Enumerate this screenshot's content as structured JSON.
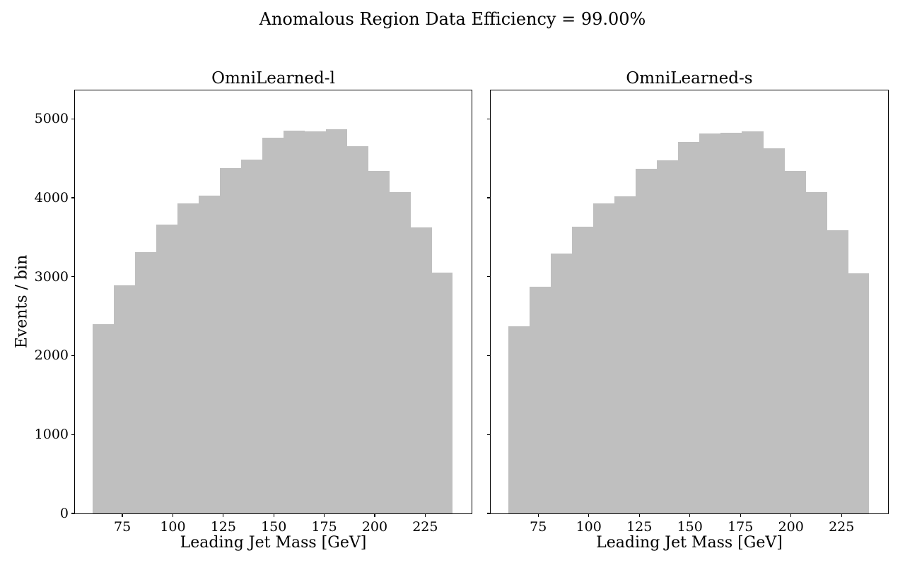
{
  "figure": {
    "suptitle": "Anomalous Region Data Efficiency = 99.00%",
    "colors": {
      "bar_fill": "#bfbfbf",
      "spine": "#000000",
      "background": "#ffffff",
      "text": "#000000"
    }
  },
  "chart_data": [
    {
      "type": "bar",
      "subtype": "histogram",
      "title": "OmniLearned-l",
      "xlabel": "Leading Jet Mass [GeV]",
      "ylabel": "Events / bin",
      "bin_edges_gev": [
        60.2,
        70.7,
        81.2,
        91.7,
        102.2,
        112.7,
        123.2,
        133.7,
        144.2,
        154.7,
        165.2,
        175.7,
        186.2,
        196.7,
        207.2,
        217.7,
        228.2,
        238.7
      ],
      "values": [
        2400,
        2890,
        3310,
        3660,
        3930,
        4030,
        4380,
        4480,
        4760,
        4850,
        4840,
        4870,
        4650,
        4340,
        4070,
        3620,
        3050
      ],
      "xticks": [
        75,
        100,
        125,
        150,
        175,
        200,
        225
      ],
      "yticks": [
        0,
        1000,
        2000,
        3000,
        4000,
        5000
      ],
      "xlim": [
        51.5,
        248.0
      ],
      "ylim": [
        0,
        5360
      ],
      "grid": false,
      "legend": "none",
      "show_y_tick_labels": true
    },
    {
      "type": "bar",
      "subtype": "histogram",
      "title": "OmniLearned-s",
      "xlabel": "Leading Jet Mass [GeV]",
      "ylabel": "",
      "bin_edges_gev": [
        60.2,
        70.7,
        81.2,
        91.7,
        102.2,
        112.7,
        123.2,
        133.7,
        144.2,
        154.7,
        165.2,
        175.7,
        186.2,
        196.7,
        207.2,
        217.7,
        228.2,
        238.7
      ],
      "values": [
        2370,
        2870,
        3290,
        3630,
        3930,
        4020,
        4370,
        4470,
        4710,
        4810,
        4820,
        4840,
        4630,
        4340,
        4070,
        3590,
        3040
      ],
      "xticks": [
        75,
        100,
        125,
        150,
        175,
        200,
        225
      ],
      "yticks": [
        0,
        1000,
        2000,
        3000,
        4000,
        5000
      ],
      "xlim": [
        51.5,
        248.0
      ],
      "ylim": [
        0,
        5360
      ],
      "grid": false,
      "legend": "none",
      "show_y_tick_labels": false
    }
  ]
}
